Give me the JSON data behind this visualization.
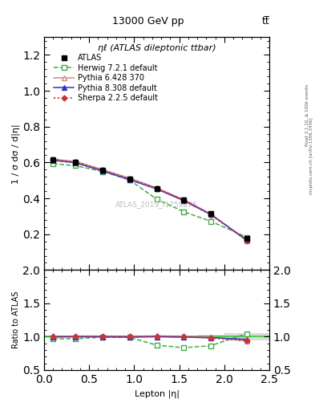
{
  "title_top": "13000 GeV pp",
  "title_right": "tt̅",
  "subtitle": "ηℓ (ATLAS dileptonic ttbar)",
  "watermark": "ATLAS_2019_I1759875",
  "ylabel_main": "1 / σ dσ / d|η|",
  "ylabel_ratio": "Ratio to ATLAS",
  "xlabel": "Lepton |η|",
  "right_label_line1": "Rivet 3.1.10, ≥ 100k events",
  "right_label_line2": "mcplots.cern.ch [arXiv:1306.3436]",
  "xbins": [
    0.0,
    0.2,
    0.5,
    0.8,
    1.1,
    1.4,
    1.7,
    2.0,
    2.5
  ],
  "xcenters": [
    0.1,
    0.35,
    0.65,
    0.95,
    1.25,
    1.55,
    1.85,
    2.25
  ],
  "atlas_y": [
    0.615,
    0.6,
    0.555,
    0.508,
    0.453,
    0.39,
    0.315,
    0.175
  ],
  "atlas_yerr": [
    0.01,
    0.008,
    0.007,
    0.006,
    0.006,
    0.007,
    0.008,
    0.01
  ],
  "herwig_y": [
    0.593,
    0.582,
    0.55,
    0.502,
    0.395,
    0.325,
    0.272,
    0.183
  ],
  "pythia6_y": [
    0.618,
    0.605,
    0.56,
    0.512,
    0.458,
    0.393,
    0.313,
    0.163
  ],
  "pythia8_y": [
    0.612,
    0.598,
    0.553,
    0.504,
    0.452,
    0.387,
    0.31,
    0.168
  ],
  "sherpa_y": [
    0.617,
    0.603,
    0.557,
    0.509,
    0.455,
    0.39,
    0.308,
    0.165
  ],
  "atlas_color": "#000000",
  "herwig_color": "#44aa44",
  "pythia6_color": "#cc8888",
  "pythia8_color": "#3333cc",
  "sherpa_color": "#cc3333",
  "ylim_main": [
    0.0,
    1.3
  ],
  "ylim_ratio": [
    0.5,
    2.0
  ],
  "yticks_main": [
    0.2,
    0.4,
    0.6,
    0.8,
    1.0,
    1.2
  ],
  "yticks_ratio": [
    0.5,
    1.0,
    1.5,
    2.0
  ],
  "xlim": [
    0.0,
    2.5
  ]
}
